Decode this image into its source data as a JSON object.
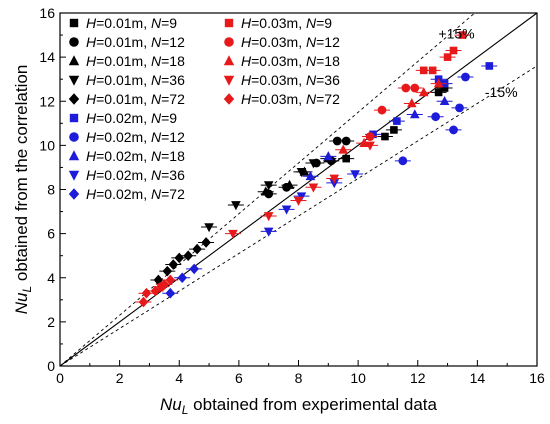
{
  "chart_data": {
    "type": "scatter",
    "title": "",
    "xlabel": {
      "pre": "Nu",
      "sub": "L",
      "post": " obtained from experimental data"
    },
    "ylabel": {
      "pre": "Nu",
      "sub": "L",
      "post": " obtained from the correlation"
    },
    "xlim": [
      0,
      16
    ],
    "ylim": [
      0,
      16
    ],
    "xticks": [
      0,
      2,
      4,
      6,
      8,
      10,
      12,
      14,
      16
    ],
    "yticks": [
      0,
      2,
      4,
      6,
      8,
      10,
      12,
      14,
      16
    ],
    "grid": false,
    "legend_position": "top-left",
    "reference_lines": [
      {
        "kind": "identity",
        "slope": 1.0,
        "style": "solid",
        "label": ""
      },
      {
        "kind": "upper-bound",
        "slope": 1.15,
        "style": "dashed",
        "label": "+15%"
      },
      {
        "kind": "lower-bound",
        "slope": 0.85,
        "style": "dashed",
        "label": "-15%"
      }
    ],
    "series": [
      {
        "name_h": "0.01m",
        "name_n": "9",
        "color": "#000000",
        "marker": "square",
        "points": [
          [
            9.6,
            9.4
          ],
          [
            10.9,
            10.4
          ],
          [
            11.2,
            10.7
          ],
          [
            12.7,
            12.4
          ],
          [
            12.9,
            12.6
          ]
        ]
      },
      {
        "name_h": "0.01m",
        "name_n": "12",
        "color": "#000000",
        "marker": "circle",
        "points": [
          [
            7.0,
            7.8
          ],
          [
            7.6,
            8.1
          ],
          [
            8.6,
            9.2
          ],
          [
            9.1,
            9.3
          ],
          [
            9.3,
            10.2
          ],
          [
            9.6,
            10.2
          ]
        ]
      },
      {
        "name_h": "0.01m",
        "name_n": "18",
        "color": "#000000",
        "marker": "triangle-up",
        "points": [
          [
            6.9,
            7.9
          ],
          [
            7.7,
            8.2
          ],
          [
            8.2,
            8.8
          ],
          [
            9.0,
            9.4
          ]
        ]
      },
      {
        "name_h": "0.01m",
        "name_n": "36",
        "color": "#000000",
        "marker": "triangle-down",
        "points": [
          [
            5.0,
            6.3
          ],
          [
            5.9,
            7.3
          ],
          [
            7.0,
            8.2
          ],
          [
            8.1,
            8.8
          ],
          [
            8.5,
            9.2
          ]
        ]
      },
      {
        "name_h": "0.01m",
        "name_n": "72",
        "color": "#000000",
        "marker": "diamond",
        "points": [
          [
            3.3,
            3.9
          ],
          [
            3.6,
            4.3
          ],
          [
            3.8,
            4.6
          ],
          [
            4.0,
            4.9
          ],
          [
            4.3,
            5.0
          ],
          [
            4.6,
            5.3
          ],
          [
            4.9,
            5.6
          ]
        ]
      },
      {
        "name_h": "0.02m",
        "name_n": "9",
        "color": "#1c1cd9",
        "marker": "square",
        "points": [
          [
            12.7,
            13.0
          ],
          [
            12.9,
            12.8
          ],
          [
            14.4,
            13.6
          ],
          [
            11.3,
            11.1
          ],
          [
            10.5,
            10.5
          ]
        ]
      },
      {
        "name_h": "0.02m",
        "name_n": "12",
        "color": "#1c1cd9",
        "marker": "circle",
        "points": [
          [
            11.5,
            9.3
          ],
          [
            13.2,
            10.7
          ],
          [
            13.6,
            13.1
          ],
          [
            13.4,
            11.7
          ],
          [
            12.6,
            11.3
          ]
        ]
      },
      {
        "name_h": "0.02m",
        "name_n": "18",
        "color": "#1c1cd9",
        "marker": "triangle-up",
        "points": [
          [
            12.9,
            12.0
          ],
          [
            11.9,
            11.4
          ],
          [
            8.4,
            8.6
          ],
          [
            9.0,
            9.5
          ]
        ]
      },
      {
        "name_h": "0.02m",
        "name_n": "36",
        "color": "#1c1cd9",
        "marker": "triangle-down",
        "points": [
          [
            7.0,
            6.1
          ],
          [
            7.6,
            7.1
          ],
          [
            8.1,
            7.7
          ],
          [
            9.2,
            8.3
          ],
          [
            9.9,
            8.7
          ]
        ]
      },
      {
        "name_h": "0.02m",
        "name_n": "72",
        "color": "#1c1cd9",
        "marker": "diamond",
        "points": [
          [
            3.7,
            3.3
          ],
          [
            4.1,
            4.0
          ],
          [
            4.5,
            4.4
          ]
        ]
      },
      {
        "name_h": "0.03m",
        "name_n": "9",
        "color": "#e8191a",
        "marker": "square",
        "points": [
          [
            13.0,
            14.0
          ],
          [
            13.2,
            14.3
          ],
          [
            13.5,
            15.0
          ],
          [
            12.2,
            13.4
          ],
          [
            12.5,
            13.4
          ]
        ]
      },
      {
        "name_h": "0.03m",
        "name_n": "12",
        "color": "#e8191a",
        "marker": "circle",
        "points": [
          [
            10.4,
            10.4
          ],
          [
            10.8,
            11.6
          ],
          [
            11.6,
            12.6
          ],
          [
            11.9,
            12.6
          ],
          [
            3.4,
            3.6
          ]
        ]
      },
      {
        "name_h": "0.03m",
        "name_n": "18",
        "color": "#e8191a",
        "marker": "triangle-up",
        "points": [
          [
            11.8,
            11.9
          ],
          [
            12.2,
            12.4
          ],
          [
            12.7,
            12.8
          ],
          [
            9.5,
            9.8
          ],
          [
            10.2,
            10.1
          ]
        ]
      },
      {
        "name_h": "0.03m",
        "name_n": "36",
        "color": "#e8191a",
        "marker": "triangle-down",
        "points": [
          [
            5.8,
            6.0
          ],
          [
            7.0,
            6.8
          ],
          [
            8.0,
            7.5
          ],
          [
            8.5,
            8.1
          ],
          [
            9.2,
            8.5
          ],
          [
            10.4,
            10.0
          ]
        ]
      },
      {
        "name_h": "0.03m",
        "name_n": "72",
        "color": "#e8191a",
        "marker": "diamond",
        "points": [
          [
            2.8,
            2.9
          ],
          [
            2.9,
            3.3
          ],
          [
            3.2,
            3.4
          ],
          [
            3.5,
            3.7
          ],
          [
            3.7,
            3.9
          ]
        ]
      }
    ]
  }
}
